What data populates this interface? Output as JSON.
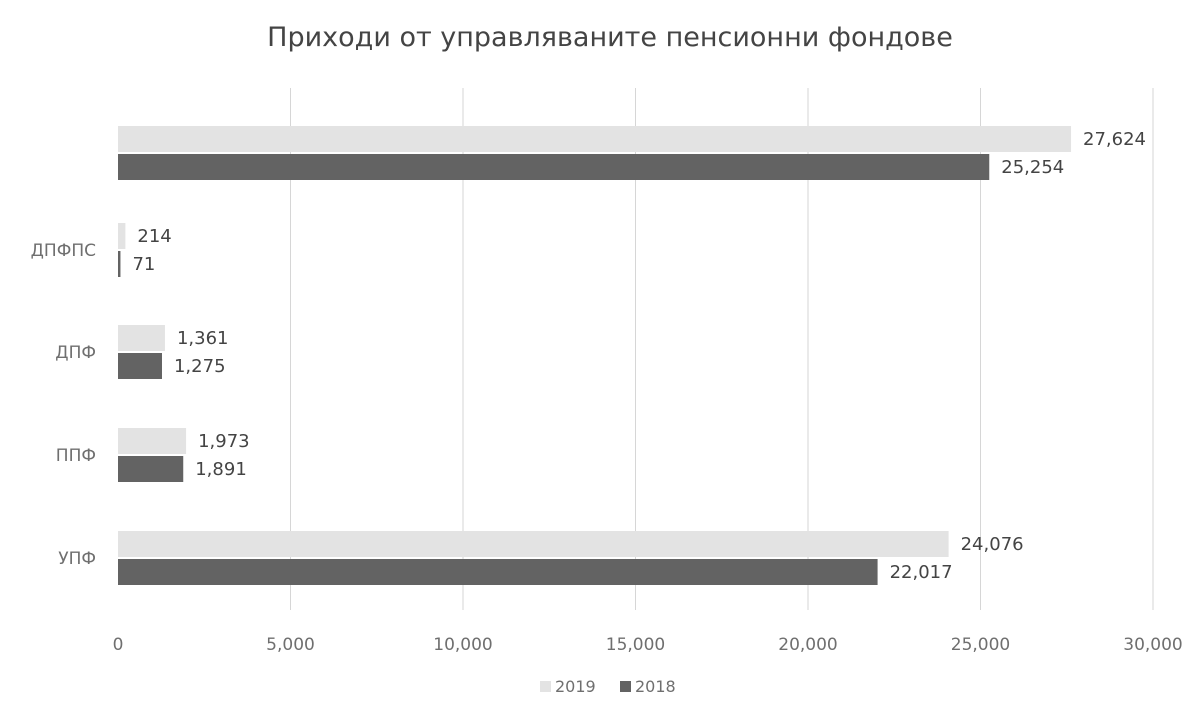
{
  "chart_data": {
    "type": "bar",
    "orientation": "horizontal",
    "title": "Приходи от управляваните пенсионни фондове",
    "categories": [
      "",
      "ДПФПС",
      "ДПФ",
      "ППФ",
      "УПФ"
    ],
    "series": [
      {
        "name": "2019",
        "color": "#e3e3e3",
        "values": [
          27624,
          214,
          1361,
          1973,
          24076
        ],
        "labels": [
          "27,624",
          "214",
          "1,361",
          "1,973",
          "24,076"
        ]
      },
      {
        "name": "2018",
        "color": "#636363",
        "values": [
          25254,
          71,
          1275,
          1891,
          22017
        ],
        "labels": [
          "25,254",
          "71",
          "1,275",
          "1,891",
          "22,017"
        ]
      }
    ],
    "xlim": [
      0,
      30000
    ],
    "xticks": [
      0,
      5000,
      10000,
      15000,
      20000,
      25000,
      30000
    ],
    "xtick_labels": [
      "0",
      "5,000",
      "10,000",
      "15,000",
      "20,000",
      "25,000",
      "30,000"
    ],
    "grid": "vertical",
    "legend": "bottom"
  }
}
